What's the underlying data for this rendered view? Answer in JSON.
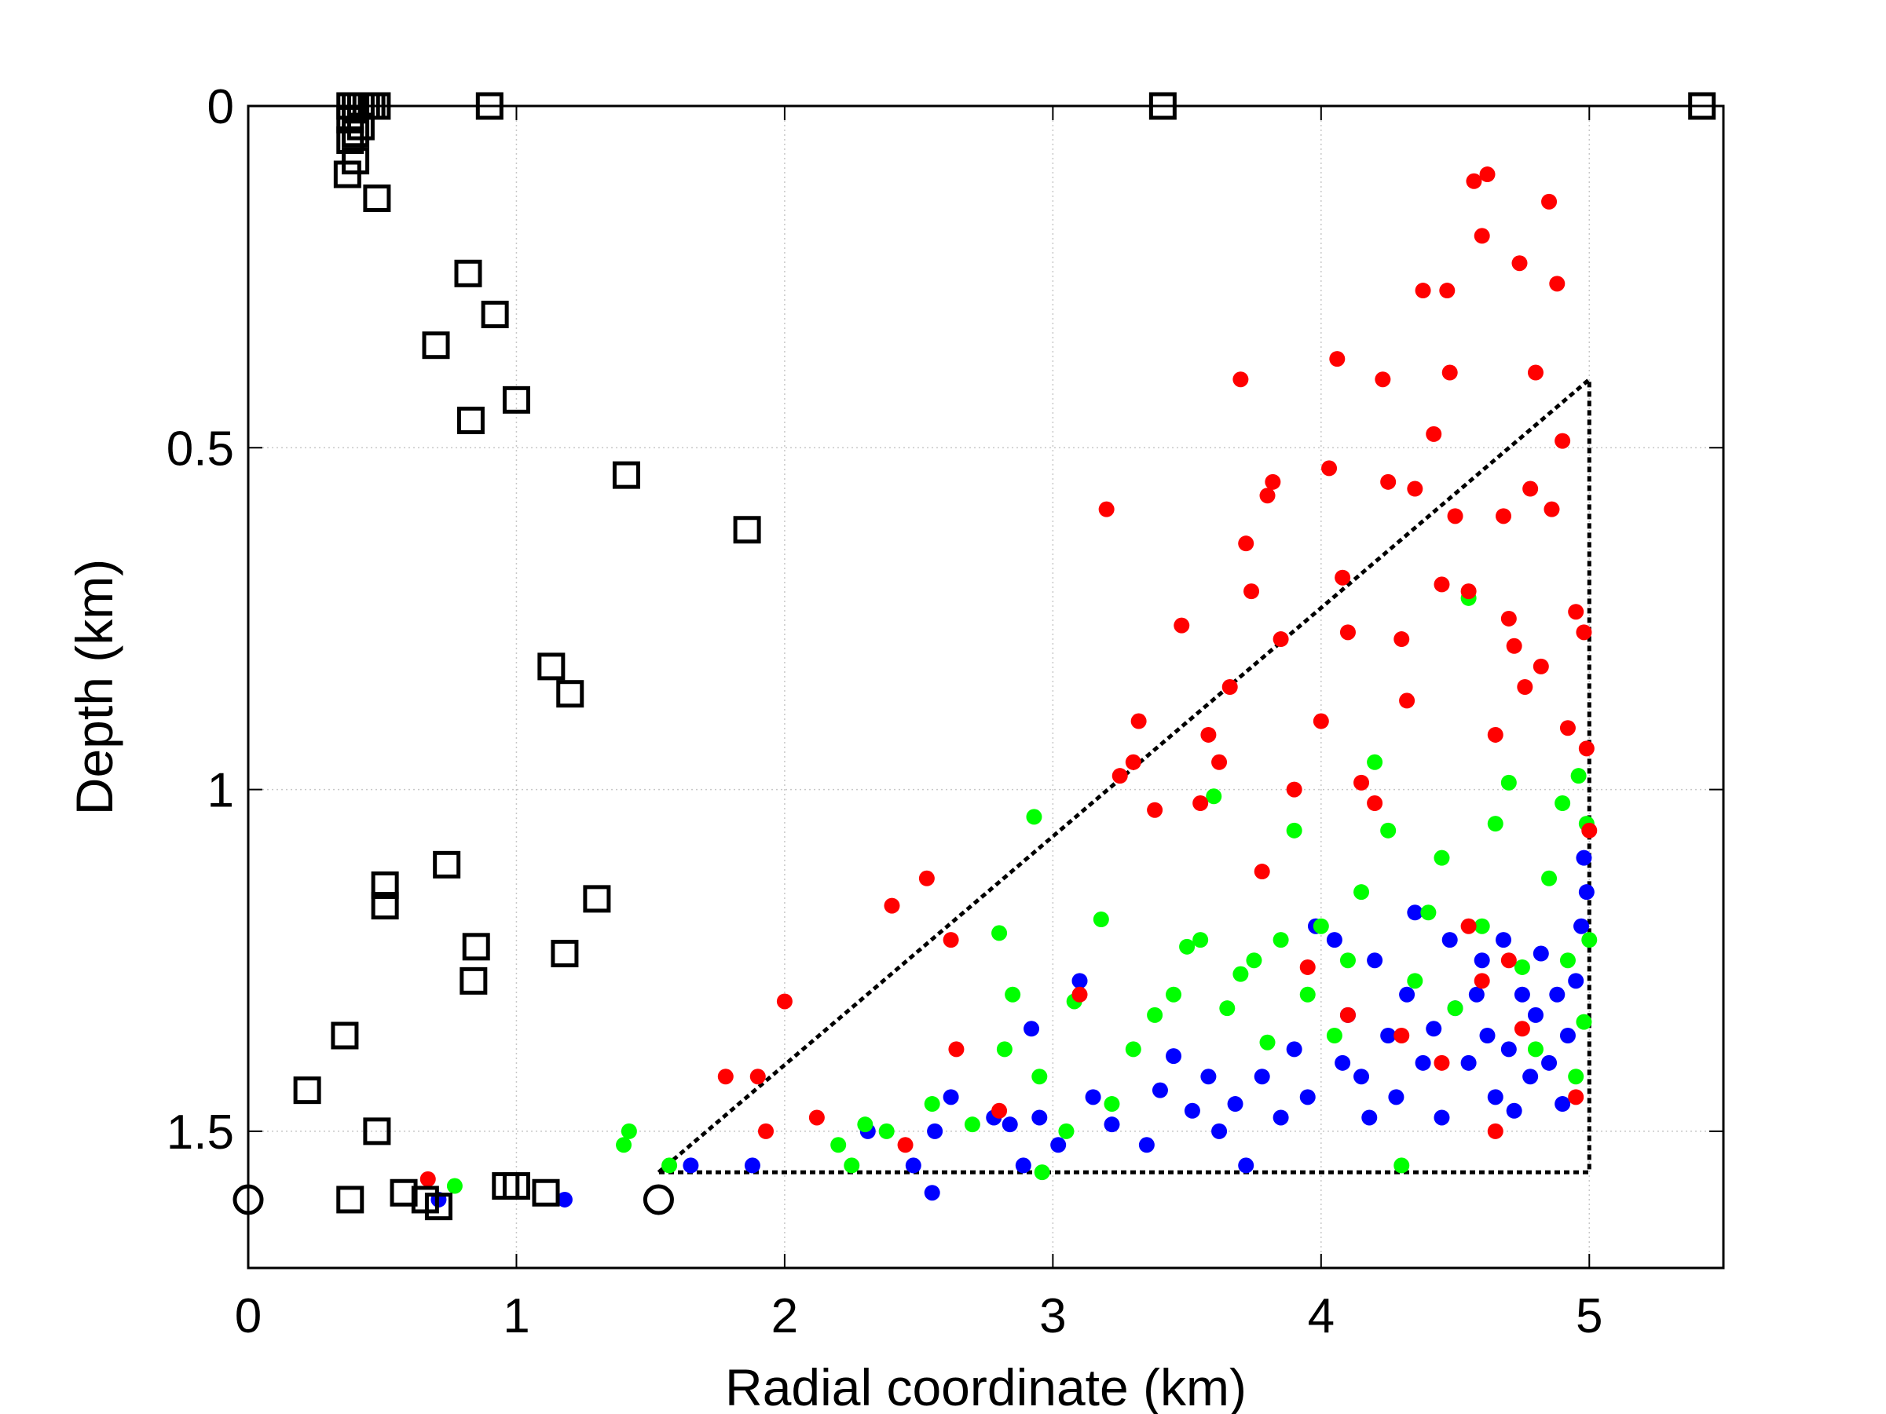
{
  "chart_data": {
    "type": "scatter",
    "xlabel": "Radial coordinate (km)",
    "ylabel": "Depth (km)",
    "xlim": [
      0,
      5.5
    ],
    "ylim": [
      0,
      1.7
    ],
    "y_reversed": true,
    "grid": true,
    "xticks": [
      "0",
      "1",
      "2",
      "3",
      "4",
      "5"
    ],
    "yticks": [
      "0",
      "0.5",
      "1",
      "1.5"
    ],
    "colors": {
      "red": "#ff0000",
      "green": "#00ff00",
      "blue": "#0000ff",
      "outline": "#000000"
    },
    "series": [
      {
        "marker": "square-open",
        "color": "#000000",
        "points": [
          [
            0.38,
            0.0
          ],
          [
            0.4,
            0.0
          ],
          [
            0.42,
            0.0
          ],
          [
            0.44,
            0.0
          ],
          [
            0.46,
            0.0
          ],
          [
            0.48,
            0.0
          ],
          [
            0.38,
            0.02
          ],
          [
            0.4,
            0.04
          ],
          [
            0.42,
            0.03
          ],
          [
            0.38,
            0.05
          ],
          [
            0.4,
            0.08
          ],
          [
            0.37,
            0.1
          ],
          [
            0.9,
            0.0
          ],
          [
            3.41,
            0.0
          ],
          [
            5.42,
            0.0
          ],
          [
            0.48,
            0.135
          ],
          [
            0.82,
            0.245
          ],
          [
            0.92,
            0.305
          ],
          [
            0.7,
            0.35
          ],
          [
            1.0,
            0.43
          ],
          [
            0.83,
            0.46
          ],
          [
            1.41,
            0.54
          ],
          [
            1.86,
            0.62
          ],
          [
            1.13,
            0.82
          ],
          [
            1.2,
            0.86
          ],
          [
            0.74,
            1.11
          ],
          [
            0.51,
            1.14
          ],
          [
            0.51,
            1.17
          ],
          [
            1.3,
            1.16
          ],
          [
            0.85,
            1.23
          ],
          [
            1.18,
            1.24
          ],
          [
            0.84,
            1.28
          ],
          [
            0.36,
            1.36
          ],
          [
            0.22,
            1.44
          ],
          [
            0.48,
            1.5
          ],
          [
            0.58,
            1.59
          ],
          [
            0.96,
            1.58
          ],
          [
            1.0,
            1.58
          ],
          [
            1.11,
            1.59
          ],
          [
            0.38,
            1.6
          ],
          [
            0.66,
            1.6
          ],
          [
            0.71,
            1.61
          ]
        ]
      },
      {
        "marker": "circle-open",
        "color": "#000000",
        "points": [
          [
            0.0,
            1.6
          ],
          [
            1.53,
            1.6
          ]
        ]
      },
      {
        "marker": "line-dotted",
        "color": "#000000",
        "points": [
          [
            1.53,
            1.56
          ],
          [
            5.0,
            0.4
          ],
          [
            5.0,
            1.56
          ],
          [
            1.53,
            1.56
          ]
        ]
      },
      {
        "marker": "dot",
        "color": "#0000ff",
        "points": [
          [
            0.71,
            1.6
          ],
          [
            1.18,
            1.6
          ],
          [
            1.65,
            1.55
          ],
          [
            1.88,
            1.55
          ],
          [
            2.31,
            1.5
          ],
          [
            2.48,
            1.55
          ],
          [
            2.56,
            1.5
          ],
          [
            2.55,
            1.59
          ],
          [
            2.62,
            1.45
          ],
          [
            2.78,
            1.48
          ],
          [
            2.84,
            1.49
          ],
          [
            2.89,
            1.55
          ],
          [
            2.92,
            1.35
          ],
          [
            2.95,
            1.48
          ],
          [
            3.02,
            1.52
          ],
          [
            3.1,
            1.28
          ],
          [
            3.15,
            1.45
          ],
          [
            3.22,
            1.49
          ],
          [
            3.35,
            1.52
          ],
          [
            3.4,
            1.44
          ],
          [
            3.45,
            1.39
          ],
          [
            3.52,
            1.47
          ],
          [
            3.58,
            1.42
          ],
          [
            3.62,
            1.5
          ],
          [
            3.68,
            1.46
          ],
          [
            3.72,
            1.55
          ],
          [
            3.78,
            1.42
          ],
          [
            3.85,
            1.48
          ],
          [
            3.9,
            1.38
          ],
          [
            3.95,
            1.45
          ],
          [
            3.98,
            1.2
          ],
          [
            4.05,
            1.22
          ],
          [
            4.08,
            1.4
          ],
          [
            4.1,
            1.33
          ],
          [
            4.15,
            1.42
          ],
          [
            4.18,
            1.48
          ],
          [
            4.2,
            1.25
          ],
          [
            4.25,
            1.36
          ],
          [
            4.28,
            1.45
          ],
          [
            4.32,
            1.3
          ],
          [
            4.35,
            1.18
          ],
          [
            4.38,
            1.4
          ],
          [
            4.42,
            1.35
          ],
          [
            4.45,
            1.48
          ],
          [
            4.48,
            1.22
          ],
          [
            4.5,
            1.32
          ],
          [
            4.55,
            1.4
          ],
          [
            4.58,
            1.3
          ],
          [
            4.6,
            1.25
          ],
          [
            4.62,
            1.36
          ],
          [
            4.65,
            1.45
          ],
          [
            4.68,
            1.22
          ],
          [
            4.7,
            1.38
          ],
          [
            4.72,
            1.47
          ],
          [
            4.75,
            1.3
          ],
          [
            4.78,
            1.42
          ],
          [
            4.8,
            1.33
          ],
          [
            4.82,
            1.24
          ],
          [
            4.85,
            1.4
          ],
          [
            4.88,
            1.3
          ],
          [
            4.9,
            1.46
          ],
          [
            4.92,
            1.36
          ],
          [
            4.95,
            1.28
          ],
          [
            4.97,
            1.2
          ],
          [
            4.98,
            1.1
          ],
          [
            4.99,
            1.15
          ]
        ]
      },
      {
        "marker": "dot",
        "color": "#00ff00",
        "points": [
          [
            0.77,
            1.58
          ],
          [
            1.4,
            1.52
          ],
          [
            1.42,
            1.5
          ],
          [
            1.57,
            1.55
          ],
          [
            2.2,
            1.52
          ],
          [
            2.25,
            1.55
          ],
          [
            2.3,
            1.49
          ],
          [
            2.38,
            1.5
          ],
          [
            2.55,
            1.46
          ],
          [
            2.7,
            1.49
          ],
          [
            2.8,
            1.21
          ],
          [
            2.82,
            1.38
          ],
          [
            2.85,
            1.3
          ],
          [
            2.93,
            1.04
          ],
          [
            2.95,
            1.42
          ],
          [
            2.96,
            1.56
          ],
          [
            3.05,
            1.5
          ],
          [
            3.08,
            1.31
          ],
          [
            3.18,
            1.19
          ],
          [
            3.22,
            1.46
          ],
          [
            3.3,
            1.38
          ],
          [
            3.38,
            1.33
          ],
          [
            3.45,
            1.3
          ],
          [
            3.5,
            1.23
          ],
          [
            3.55,
            1.22
          ],
          [
            3.6,
            1.01
          ],
          [
            3.65,
            1.32
          ],
          [
            3.7,
            1.27
          ],
          [
            3.75,
            1.25
          ],
          [
            3.8,
            1.37
          ],
          [
            3.85,
            1.22
          ],
          [
            3.9,
            1.06
          ],
          [
            3.95,
            1.3
          ],
          [
            4.0,
            1.2
          ],
          [
            4.05,
            1.36
          ],
          [
            4.1,
            1.25
          ],
          [
            4.15,
            1.15
          ],
          [
            4.2,
            0.96
          ],
          [
            4.25,
            1.06
          ],
          [
            4.3,
            1.55
          ],
          [
            4.35,
            1.28
          ],
          [
            4.4,
            1.18
          ],
          [
            4.45,
            1.1
          ],
          [
            4.5,
            1.32
          ],
          [
            4.55,
            0.72
          ],
          [
            4.6,
            1.2
          ],
          [
            4.65,
            1.05
          ],
          [
            4.7,
            0.99
          ],
          [
            4.75,
            1.26
          ],
          [
            4.8,
            1.38
          ],
          [
            4.85,
            1.13
          ],
          [
            4.9,
            1.02
          ],
          [
            4.92,
            1.25
          ],
          [
            4.95,
            1.42
          ],
          [
            4.98,
            1.34
          ],
          [
            4.99,
            1.05
          ],
          [
            5.0,
            1.22
          ],
          [
            4.96,
            0.98
          ]
        ]
      },
      {
        "marker": "dot",
        "color": "#ff0000",
        "points": [
          [
            0.67,
            1.57
          ],
          [
            1.78,
            1.42
          ],
          [
            1.9,
            1.42
          ],
          [
            1.93,
            1.5
          ],
          [
            2.0,
            1.31
          ],
          [
            2.12,
            1.48
          ],
          [
            2.4,
            1.17
          ],
          [
            2.45,
            1.52
          ],
          [
            2.53,
            1.13
          ],
          [
            2.62,
            1.22
          ],
          [
            2.64,
            1.38
          ],
          [
            2.8,
            1.47
          ],
          [
            3.1,
            1.3
          ],
          [
            3.2,
            0.59
          ],
          [
            3.25,
            0.98
          ],
          [
            3.3,
            0.96
          ],
          [
            3.32,
            0.9
          ],
          [
            3.38,
            1.03
          ],
          [
            3.48,
            0.76
          ],
          [
            3.55,
            1.02
          ],
          [
            3.58,
            0.92
          ],
          [
            3.62,
            0.96
          ],
          [
            3.66,
            0.85
          ],
          [
            3.7,
            0.4
          ],
          [
            3.72,
            0.64
          ],
          [
            3.74,
            0.71
          ],
          [
            3.78,
            1.12
          ],
          [
            3.8,
            0.57
          ],
          [
            3.82,
            0.55
          ],
          [
            3.85,
            0.78
          ],
          [
            3.9,
            1.0
          ],
          [
            4.0,
            0.9
          ],
          [
            4.03,
            0.53
          ],
          [
            4.06,
            0.37
          ],
          [
            4.08,
            0.69
          ],
          [
            4.1,
            0.77
          ],
          [
            4.15,
            0.99
          ],
          [
            4.2,
            1.02
          ],
          [
            4.23,
            0.4
          ],
          [
            4.25,
            0.55
          ],
          [
            4.3,
            0.78
          ],
          [
            4.32,
            0.87
          ],
          [
            4.35,
            0.56
          ],
          [
            4.38,
            0.27
          ],
          [
            4.42,
            0.48
          ],
          [
            4.45,
            0.7
          ],
          [
            4.47,
            0.27
          ],
          [
            4.48,
            0.39
          ],
          [
            4.5,
            0.6
          ],
          [
            4.55,
            0.71
          ],
          [
            4.57,
            0.11
          ],
          [
            4.6,
            0.19
          ],
          [
            4.62,
            0.1
          ],
          [
            4.65,
            0.92
          ],
          [
            4.68,
            0.6
          ],
          [
            4.7,
            0.75
          ],
          [
            4.72,
            0.79
          ],
          [
            4.74,
            0.23
          ],
          [
            4.76,
            0.85
          ],
          [
            4.78,
            0.56
          ],
          [
            4.8,
            0.39
          ],
          [
            4.82,
            0.82
          ],
          [
            4.85,
            0.14
          ],
          [
            4.86,
            0.59
          ],
          [
            4.88,
            0.26
          ],
          [
            4.9,
            0.49
          ],
          [
            4.92,
            0.91
          ],
          [
            4.95,
            0.74
          ],
          [
            4.98,
            0.77
          ],
          [
            4.99,
            0.94
          ],
          [
            5.0,
            1.06
          ],
          [
            4.55,
            1.2
          ],
          [
            4.6,
            1.28
          ],
          [
            4.7,
            1.25
          ],
          [
            4.75,
            1.35
          ],
          [
            4.3,
            1.36
          ],
          [
            4.1,
            1.33
          ],
          [
            3.95,
            1.26
          ],
          [
            4.45,
            1.4
          ],
          [
            4.65,
            1.5
          ],
          [
            4.95,
            1.45
          ]
        ]
      }
    ]
  }
}
